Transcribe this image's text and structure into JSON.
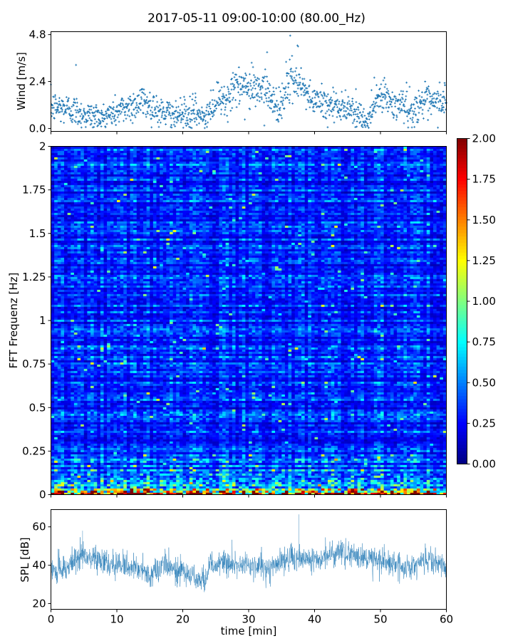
{
  "title": "2017-05-11 09:00-10:00 (80.00_Hz)",
  "colors": {
    "series": "#1f77b4",
    "frame": "#000000",
    "background": "#ffffff",
    "colormap": "jet"
  },
  "chart_data": [
    {
      "type": "scatter",
      "panel": "wind",
      "ylabel": "Wind [m/s]",
      "xlim": [
        0,
        60
      ],
      "ylim": [
        -0.15,
        4.95
      ],
      "yticks": [
        0.0,
        2.4,
        4.8
      ],
      "ytick_labels": [
        "0.0",
        "2.4",
        "4.8"
      ],
      "grid": false,
      "marker": "+",
      "mean_profile": {
        "x": [
          0,
          3,
          5,
          8,
          11,
          14,
          17,
          20,
          22,
          23,
          25,
          27,
          29,
          31,
          33,
          34.5,
          36,
          37,
          38,
          40,
          42,
          44,
          45,
          46,
          47,
          48,
          49,
          50,
          52,
          54,
          55,
          56,
          58,
          60
        ],
        "y": [
          1.1,
          1.0,
          0.7,
          0.6,
          1.0,
          1.4,
          0.8,
          0.7,
          0.9,
          0.5,
          1.2,
          1.8,
          2.1,
          2.2,
          2.0,
          0.9,
          2.3,
          2.5,
          2.0,
          1.4,
          1.3,
          1.1,
          0.8,
          1.0,
          0.5,
          0.3,
          1.2,
          1.8,
          1.2,
          1.1,
          0.8,
          1.4,
          1.2,
          1.5
        ]
      },
      "peaks": [
        {
          "x": 3.8,
          "y": 3.25
        },
        {
          "x": 36.3,
          "y": 4.75
        },
        {
          "x": 37.5,
          "y": 4.2
        },
        {
          "x": 32.8,
          "y": 3.9
        }
      ]
    },
    {
      "type": "heatmap",
      "panel": "spectrogram",
      "ylabel": "FFT Frequenz [Hz]",
      "xlim": [
        0,
        60
      ],
      "ylim": [
        0,
        2
      ],
      "yticks": [
        0,
        0.25,
        0.5,
        0.75,
        1,
        1.25,
        1.5,
        1.75,
        2
      ],
      "ytick_labels": [
        "0",
        "0.25",
        "0.5",
        "0.75",
        "1",
        "1.25",
        "1.5",
        "1.75",
        "2"
      ],
      "colorbar": {
        "range": [
          0.0,
          2.0
        ],
        "ticks": [
          0.0,
          0.25,
          0.5,
          0.75,
          1.0,
          1.25,
          1.5,
          1.75,
          2.0
        ],
        "tick_labels": [
          "0.00",
          "0.25",
          "0.50",
          "0.75",
          "1.00",
          "1.25",
          "1.50",
          "1.75",
          "2.00"
        ],
        "colormap": "jet"
      },
      "description_levels": {
        "typical": 0.3,
        "low_frequency_band": 1.2,
        "lowest_band": 2.0
      }
    },
    {
      "type": "line",
      "panel": "spl",
      "ylabel": "SPL [dB]",
      "xlabel": "time [min]",
      "xlim": [
        0,
        60
      ],
      "ylim": [
        17,
        69
      ],
      "yticks": [
        20,
        40,
        60
      ],
      "ytick_labels": [
        "20",
        "40",
        "60"
      ],
      "xticks": [
        0,
        10,
        20,
        30,
        40,
        50,
        60
      ],
      "xtick_labels": [
        "0",
        "10",
        "20",
        "30",
        "40",
        "50",
        "60"
      ],
      "grid": false,
      "mean_profile": {
        "x": [
          0,
          2,
          4,
          5,
          7,
          10,
          13,
          15,
          17,
          20,
          22,
          23.5,
          24,
          27,
          30,
          33,
          35,
          37,
          40,
          42,
          45,
          47,
          50,
          53,
          55,
          57,
          60
        ],
        "y": [
          38,
          37,
          44,
          46,
          42,
          40,
          39,
          35,
          41,
          37,
          33,
          32,
          40,
          41,
          40,
          38,
          43,
          44,
          43,
          45,
          46,
          44,
          43,
          40,
          39,
          43,
          39
        ]
      },
      "peaks": [
        {
          "x": 37.6,
          "y": 66.5
        },
        {
          "x": 4.8,
          "y": 58
        }
      ]
    }
  ]
}
